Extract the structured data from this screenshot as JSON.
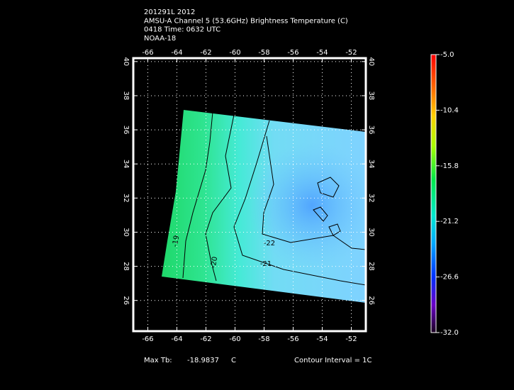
{
  "chart_data": {
    "type": "contour-map",
    "title_lines": [
      "201291L 2012",
      "AMSU-A Channel 5 (53.6GHz) Brightness Temperature (C)",
      "0418 Time: 0632 UTC",
      "NOAA-18"
    ],
    "xlim": [
      -67,
      -51
    ],
    "xticks": [
      -66,
      -64,
      -62,
      -60,
      -58,
      -56,
      -54,
      -52
    ],
    "ylim": [
      24.2,
      40.2
    ],
    "yticks": [
      26,
      28,
      30,
      32,
      34,
      36,
      38,
      40
    ],
    "grid": true,
    "colorbar": {
      "lim": [
        -32.0,
        -5.0
      ],
      "ticks": [
        {
          "value": -5.0,
          "label": "-5.0"
        },
        -10.4,
        -15.8,
        -21.2,
        -26.6,
        {
          "value": -32.0,
          "label": "-32.0"
        }
      ]
    },
    "contour_levels": [
      -19,
      -20,
      -21,
      -22
    ],
    "max_label": "Max Tb:",
    "max_value": -18.9837,
    "max_unit": "C",
    "contour_interval": "Contour Interval = 1C"
  }
}
